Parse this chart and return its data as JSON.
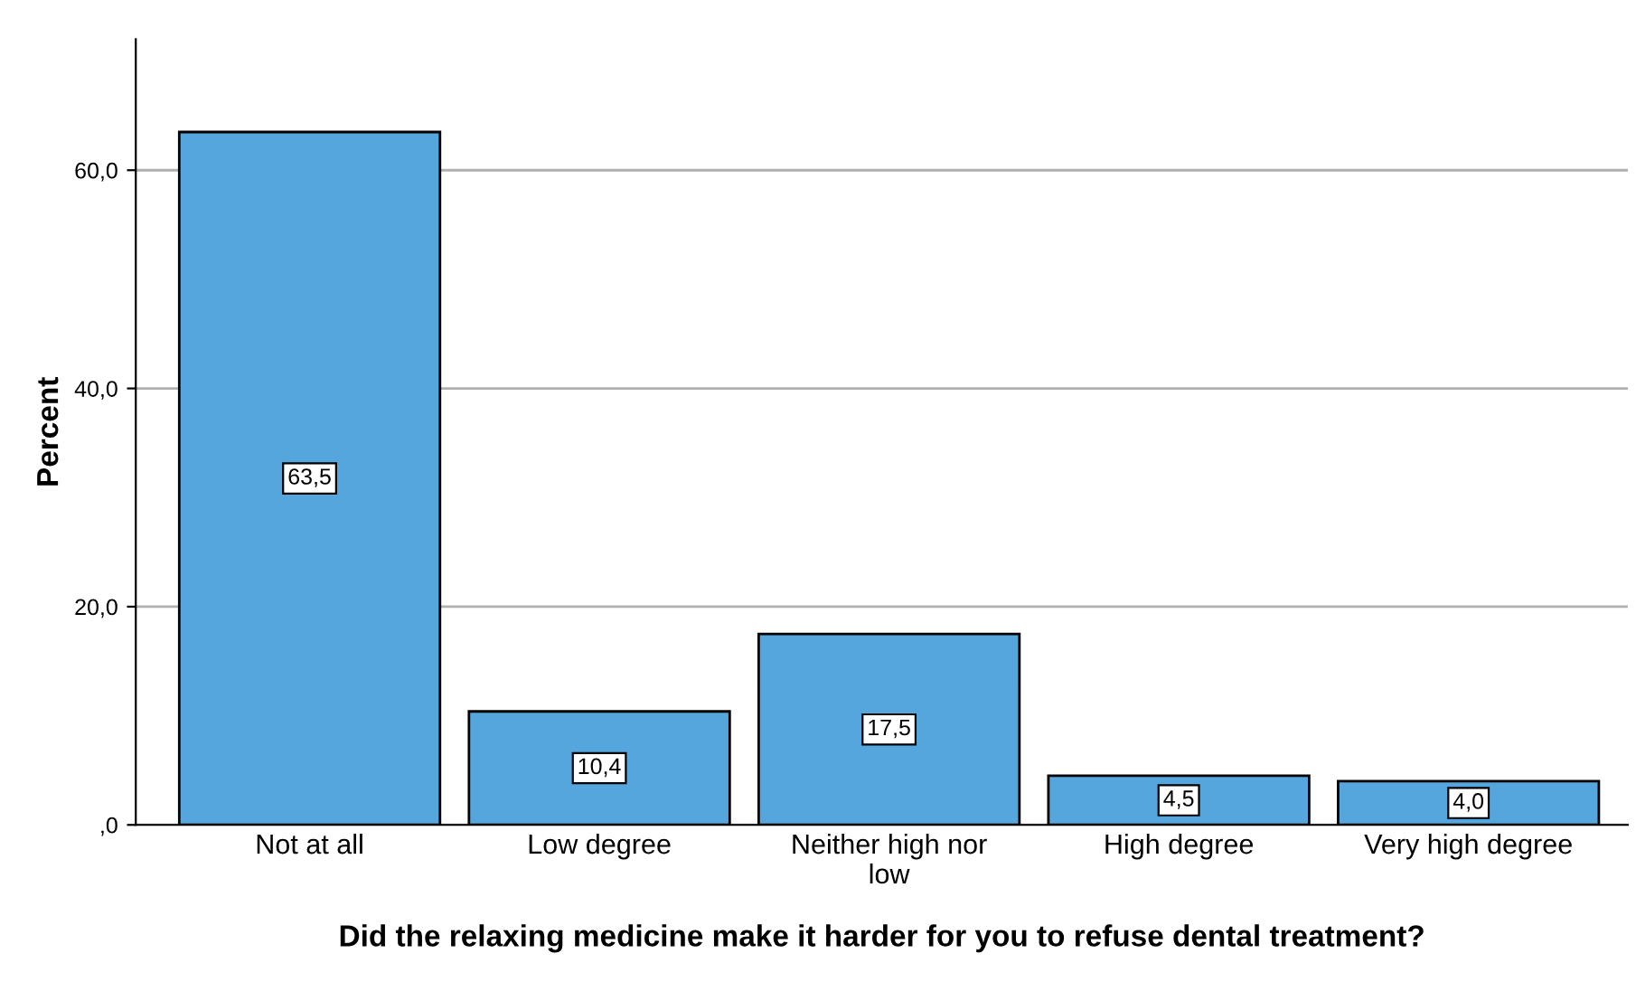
{
  "chart_data": {
    "type": "bar",
    "xlabel": "Did the relaxing medicine make it harder for you to refuse dental treatment?",
    "ylabel": "Percent",
    "categories": [
      "Not at all",
      "Low degree",
      "Neither high nor\nlow",
      "High degree",
      "Very high degree"
    ],
    "values": [
      63.5,
      10.4,
      17.5,
      4.5,
      4.0
    ],
    "value_labels": [
      "63,5",
      "10,4",
      "17,5",
      "4,5",
      "4,0"
    ],
    "color": "#55a6dc",
    "ylim": [
      0,
      72
    ],
    "yticks": [
      {
        "value": 0,
        "label": ",0"
      },
      {
        "value": 20,
        "label": "20,0"
      },
      {
        "value": 40,
        "label": "40,0"
      },
      {
        "value": 60,
        "label": "60,0"
      }
    ],
    "grid": "y"
  }
}
